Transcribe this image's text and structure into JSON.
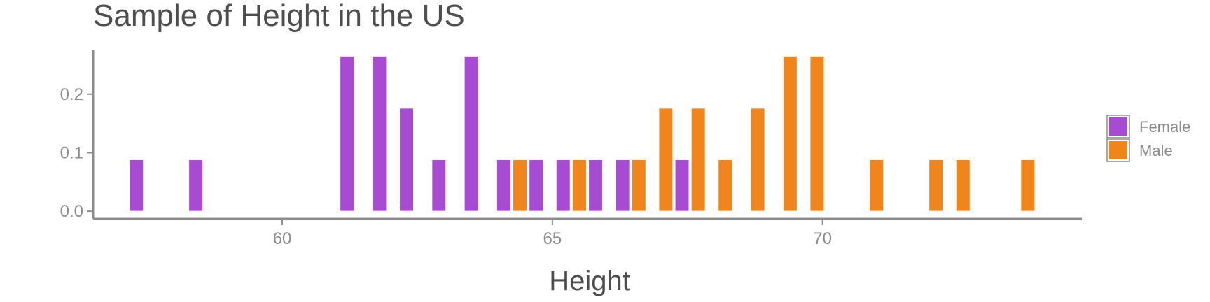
{
  "chart_data": {
    "type": "bar",
    "title": "Sample of Height in the US",
    "xlabel": "Height",
    "ylabel": "",
    "xlim": [
      56.5,
      74.8
    ],
    "ylim": [
      -0.013,
      0.275
    ],
    "x_ticks": [
      60,
      65,
      70
    ],
    "y_ticks": [
      0.0,
      0.1,
      0.2
    ],
    "y_tick_labels": [
      "0.0",
      "0.1",
      "0.2"
    ],
    "grid": false,
    "legend_position": "right",
    "series": [
      {
        "name": "Female",
        "color": "#a64bd2",
        "points": [
          {
            "x": 57.3,
            "y": 0.088
          },
          {
            "x": 58.4,
            "y": 0.088
          },
          {
            "x": 61.2,
            "y": 0.265
          },
          {
            "x": 61.8,
            "y": 0.265
          },
          {
            "x": 62.3,
            "y": 0.176
          },
          {
            "x": 62.9,
            "y": 0.088
          },
          {
            "x": 63.5,
            "y": 0.265
          },
          {
            "x": 64.1,
            "y": 0.088
          },
          {
            "x": 64.7,
            "y": 0.088
          },
          {
            "x": 65.2,
            "y": 0.088
          },
          {
            "x": 65.8,
            "y": 0.088
          },
          {
            "x": 66.3,
            "y": 0.088
          },
          {
            "x": 67.4,
            "y": 0.088
          }
        ]
      },
      {
        "name": "Male",
        "color": "#f0861b",
        "points": [
          {
            "x": 64.4,
            "y": 0.088
          },
          {
            "x": 65.5,
            "y": 0.088
          },
          {
            "x": 66.6,
            "y": 0.088
          },
          {
            "x": 67.1,
            "y": 0.176
          },
          {
            "x": 67.7,
            "y": 0.176
          },
          {
            "x": 68.2,
            "y": 0.088
          },
          {
            "x": 68.8,
            "y": 0.176
          },
          {
            "x": 69.4,
            "y": 0.265
          },
          {
            "x": 69.9,
            "y": 0.265
          },
          {
            "x": 71.0,
            "y": 0.088
          },
          {
            "x": 72.1,
            "y": 0.088
          },
          {
            "x": 72.6,
            "y": 0.088
          },
          {
            "x": 73.8,
            "y": 0.088
          }
        ]
      }
    ]
  }
}
